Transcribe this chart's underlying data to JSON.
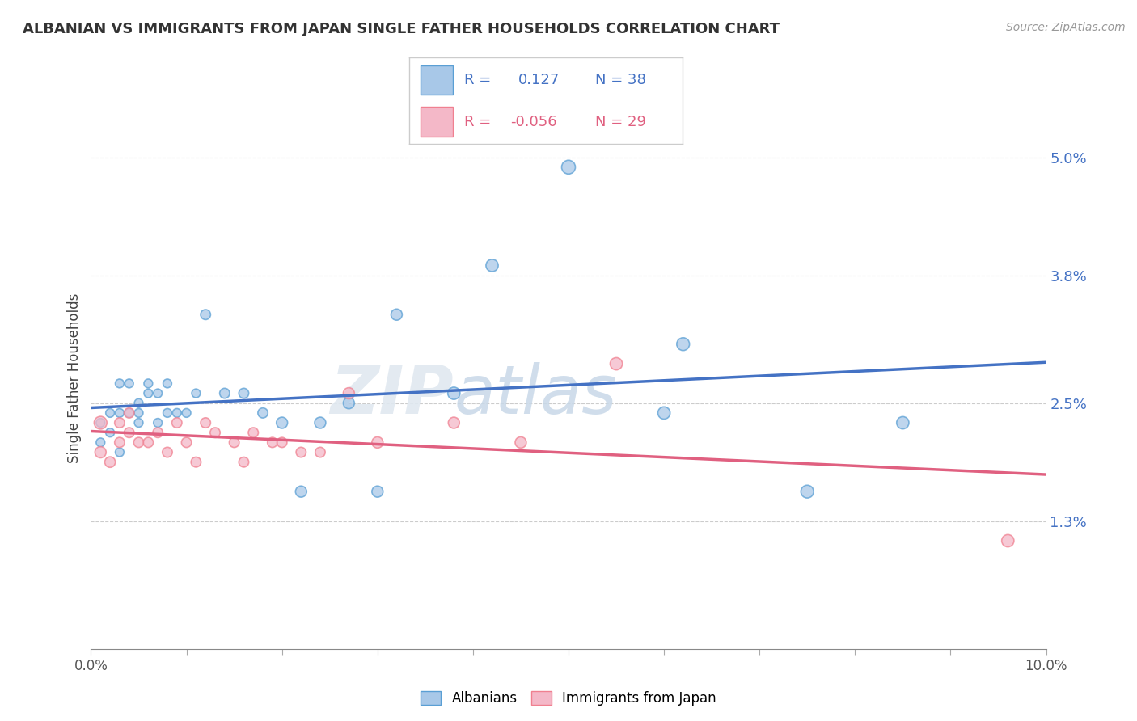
{
  "title": "ALBANIAN VS IMMIGRANTS FROM JAPAN SINGLE FATHER HOUSEHOLDS CORRELATION CHART",
  "source": "Source: ZipAtlas.com",
  "ylabel": "Single Father Households",
  "xlim": [
    0.0,
    0.1
  ],
  "ylim": [
    0.0,
    0.055
  ],
  "yticks": [
    0.013,
    0.025,
    0.038,
    0.05
  ],
  "ytick_labels": [
    "1.3%",
    "2.5%",
    "3.8%",
    "5.0%"
  ],
  "xticks": [
    0.0,
    0.025,
    0.05,
    0.075,
    0.1
  ],
  "xtick_labels": [
    "0.0%",
    "",
    "",
    "",
    "10.0%"
  ],
  "color_blue": "#a8c8e8",
  "color_pink": "#f4b8c8",
  "color_blue_edge": "#5a9fd4",
  "color_pink_edge": "#f08090",
  "color_blue_line": "#4472c4",
  "color_pink_line": "#e06080",
  "color_blue_text": "#4472c4",
  "color_pink_text": "#e06080",
  "watermark_zip": "ZIP",
  "watermark_atlas": "atlas",
  "albanians_x": [
    0.001,
    0.001,
    0.002,
    0.002,
    0.003,
    0.003,
    0.003,
    0.004,
    0.004,
    0.005,
    0.005,
    0.005,
    0.006,
    0.006,
    0.007,
    0.007,
    0.008,
    0.008,
    0.009,
    0.01,
    0.011,
    0.012,
    0.014,
    0.016,
    0.018,
    0.02,
    0.022,
    0.024,
    0.027,
    0.03,
    0.032,
    0.038,
    0.042,
    0.05,
    0.06,
    0.062,
    0.075,
    0.085
  ],
  "albanians_y": [
    0.021,
    0.023,
    0.024,
    0.022,
    0.02,
    0.024,
    0.027,
    0.024,
    0.027,
    0.025,
    0.023,
    0.024,
    0.027,
    0.026,
    0.023,
    0.026,
    0.024,
    0.027,
    0.024,
    0.024,
    0.026,
    0.034,
    0.026,
    0.026,
    0.024,
    0.023,
    0.016,
    0.023,
    0.025,
    0.016,
    0.034,
    0.026,
    0.039,
    0.049,
    0.024,
    0.031,
    0.016,
    0.023
  ],
  "japan_x": [
    0.001,
    0.001,
    0.002,
    0.003,
    0.003,
    0.004,
    0.004,
    0.005,
    0.006,
    0.007,
    0.008,
    0.009,
    0.01,
    0.011,
    0.012,
    0.013,
    0.015,
    0.016,
    0.017,
    0.019,
    0.02,
    0.022,
    0.024,
    0.027,
    0.03,
    0.038,
    0.045,
    0.055,
    0.096
  ],
  "japan_y": [
    0.023,
    0.02,
    0.019,
    0.021,
    0.023,
    0.022,
    0.024,
    0.021,
    0.021,
    0.022,
    0.02,
    0.023,
    0.021,
    0.019,
    0.023,
    0.022,
    0.021,
    0.019,
    0.022,
    0.021,
    0.021,
    0.02,
    0.02,
    0.026,
    0.021,
    0.023,
    0.021,
    0.029,
    0.011
  ],
  "albanians_sizes": [
    60,
    60,
    60,
    60,
    60,
    60,
    60,
    60,
    60,
    60,
    60,
    60,
    60,
    60,
    60,
    60,
    60,
    60,
    60,
    60,
    60,
    80,
    80,
    80,
    80,
    100,
    100,
    100,
    100,
    100,
    100,
    120,
    120,
    150,
    120,
    130,
    130,
    120
  ],
  "japan_sizes": [
    130,
    100,
    90,
    80,
    80,
    80,
    80,
    80,
    80,
    80,
    80,
    80,
    80,
    80,
    80,
    80,
    80,
    80,
    80,
    80,
    80,
    80,
    80,
    100,
    100,
    100,
    100,
    120,
    120
  ]
}
